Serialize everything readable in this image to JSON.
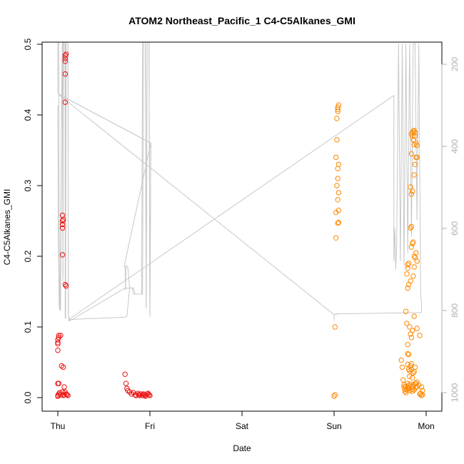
{
  "chart_data": {
    "type": "scatter",
    "title": "ATOM2 Northeast_Pacific_1 C4-C5Alkanes_GMI",
    "xlabel": "Date",
    "ylabel": "C4-C5Alkanes_GMI",
    "x_unit": "days",
    "xlim": [
      -0.2,
      4.15
    ],
    "ylim": [
      0,
      0.5
    ],
    "x_ticks": [
      0,
      1,
      2,
      3,
      4
    ],
    "x_tick_labels": [
      "Thu",
      "Fri",
      "Sat",
      "Sun",
      "Mon"
    ],
    "y_ticks": [
      0.0,
      0.1,
      0.2,
      0.3,
      0.4,
      0.5
    ],
    "y_tick_labels": [
      "0.0",
      "0.1",
      "0.2",
      "0.3",
      "0.4",
      "0.5"
    ],
    "y2_ticks": [
      200,
      400,
      600,
      800,
      1000
    ],
    "y2_tick_labels": [
      "200",
      "400",
      "600",
      "800",
      "1000"
    ],
    "y2lim": [
      1020,
      150
    ],
    "colors": {
      "series_red": "#ee1111",
      "series_orange": "#ff8800",
      "profile_line": "#c8c8c8"
    },
    "series": [
      {
        "color": "#ee1111",
        "points": [
          [
            0.0,
            0.003
          ],
          [
            0.01,
            0.005
          ],
          [
            0.02,
            0.007
          ],
          [
            0.03,
            0.004
          ],
          [
            0.0,
            0.002
          ],
          [
            0.01,
            0.088
          ],
          [
            0.01,
            0.085
          ],
          [
            0.0,
            0.082
          ],
          [
            0.0,
            0.078
          ],
          [
            0.0,
            0.076
          ],
          [
            0.0,
            0.067
          ],
          [
            0.0,
            0.02
          ],
          [
            0.01,
            0.02
          ],
          [
            0.03,
            0.088
          ],
          [
            0.04,
            0.045
          ],
          [
            0.06,
            0.043
          ],
          [
            0.05,
            0.008
          ],
          [
            0.06,
            0.003
          ],
          [
            0.07,
            0.015
          ],
          [
            0.08,
            0.008
          ],
          [
            0.09,
            0.005
          ],
          [
            0.1,
            0.004
          ],
          [
            0.11,
            0.003
          ],
          [
            0.07,
            0.004
          ],
          [
            0.05,
            0.202
          ],
          [
            0.05,
            0.24
          ],
          [
            0.05,
            0.245
          ],
          [
            0.05,
            0.25
          ],
          [
            0.06,
            0.252
          ],
          [
            0.05,
            0.258
          ],
          [
            0.08,
            0.16
          ],
          [
            0.09,
            0.158
          ],
          [
            0.08,
            0.418
          ],
          [
            0.08,
            0.458
          ],
          [
            0.08,
            0.476
          ],
          [
            0.08,
            0.48
          ],
          [
            0.08,
            0.484
          ],
          [
            0.09,
            0.486
          ],
          [
            0.73,
            0.033
          ],
          [
            0.74,
            0.02
          ],
          [
            0.75,
            0.013
          ],
          [
            0.76,
            0.01
          ],
          [
            0.78,
            0.008
          ],
          [
            0.8,
            0.005
          ],
          [
            0.82,
            0.007
          ],
          [
            0.84,
            0.004
          ],
          [
            0.85,
            0.003
          ],
          [
            0.87,
            0.006
          ],
          [
            0.88,
            0.004
          ],
          [
            0.9,
            0.005
          ],
          [
            0.92,
            0.003
          ],
          [
            0.94,
            0.004
          ],
          [
            0.95,
            0.002
          ],
          [
            0.97,
            0.005
          ],
          [
            0.98,
            0.006
          ],
          [
            0.99,
            0.004
          ],
          [
            1.0,
            0.003
          ],
          [
            0.96,
            0.003
          ],
          [
            0.93,
            0.005
          ],
          [
            0.89,
            0.003
          ]
        ]
      },
      {
        "color": "#ff8800",
        "points": [
          [
            3.0,
            0.002
          ],
          [
            3.01,
            0.004
          ],
          [
            3.01,
            0.1
          ],
          [
            3.02,
            0.226
          ],
          [
            3.02,
            0.262
          ],
          [
            3.03,
            0.3
          ],
          [
            3.04,
            0.324
          ],
          [
            3.02,
            0.34
          ],
          [
            3.05,
            0.33
          ],
          [
            3.04,
            0.31
          ],
          [
            3.05,
            0.29
          ],
          [
            3.04,
            0.28
          ],
          [
            3.05,
            0.265
          ],
          [
            3.05,
            0.248
          ],
          [
            3.04,
            0.247
          ],
          [
            3.03,
            0.365
          ],
          [
            3.03,
            0.395
          ],
          [
            3.04,
            0.405
          ],
          [
            3.04,
            0.408
          ],
          [
            3.04,
            0.411
          ],
          [
            3.05,
            0.414
          ],
          [
            3.73,
            0.053
          ],
          [
            3.74,
            0.043
          ],
          [
            3.75,
            0.025
          ],
          [
            3.76,
            0.018
          ],
          [
            3.76,
            0.015
          ],
          [
            3.77,
            0.012
          ],
          [
            3.77,
            0.009
          ],
          [
            3.78,
            0.016
          ],
          [
            3.78,
            0.007
          ],
          [
            3.79,
            0.011
          ],
          [
            3.8,
            0.014
          ],
          [
            3.8,
            0.02
          ],
          [
            3.81,
            0.017
          ],
          [
            3.81,
            0.013
          ],
          [
            3.82,
            0.01
          ],
          [
            3.83,
            0.019
          ],
          [
            3.84,
            0.016
          ],
          [
            3.85,
            0.012
          ],
          [
            3.85,
            0.009
          ],
          [
            3.86,
            0.018
          ],
          [
            3.86,
            0.015
          ],
          [
            3.87,
            0.011
          ],
          [
            3.88,
            0.02
          ],
          [
            3.89,
            0.014
          ],
          [
            3.9,
            0.016
          ],
          [
            3.78,
            0.122
          ],
          [
            3.79,
            0.105
          ],
          [
            3.8,
            0.075
          ],
          [
            3.8,
            0.062
          ],
          [
            3.81,
            0.061
          ],
          [
            3.8,
            0.047
          ],
          [
            3.81,
            0.04
          ],
          [
            3.82,
            0.038
          ],
          [
            3.82,
            0.03
          ],
          [
            3.83,
            0.045
          ],
          [
            3.84,
            0.048
          ],
          [
            3.84,
            0.04
          ],
          [
            3.85,
            0.028
          ],
          [
            3.86,
            0.035
          ],
          [
            3.87,
            0.037
          ],
          [
            3.88,
            0.043
          ],
          [
            3.89,
            0.02
          ],
          [
            3.9,
            0.022
          ],
          [
            3.82,
            0.1
          ],
          [
            3.83,
            0.09
          ],
          [
            3.84,
            0.085
          ],
          [
            3.85,
            0.095
          ],
          [
            3.87,
            0.115
          ],
          [
            3.9,
            0.098
          ],
          [
            3.93,
            0.088
          ],
          [
            3.8,
            0.155
          ],
          [
            3.81,
            0.16
          ],
          [
            3.83,
            0.165
          ],
          [
            3.79,
            0.175
          ],
          [
            3.8,
            0.183
          ],
          [
            3.8,
            0.188
          ],
          [
            3.81,
            0.19
          ],
          [
            3.84,
            0.213
          ],
          [
            3.85,
            0.218
          ],
          [
            3.86,
            0.22
          ],
          [
            3.87,
            0.2
          ],
          [
            3.88,
            0.198
          ],
          [
            3.89,
            0.205
          ],
          [
            3.9,
            0.193
          ],
          [
            3.86,
            0.172
          ],
          [
            3.87,
            0.185
          ],
          [
            3.83,
            0.24
          ],
          [
            3.84,
            0.242
          ],
          [
            3.83,
            0.298
          ],
          [
            3.84,
            0.288
          ],
          [
            3.85,
            0.292
          ],
          [
            3.87,
            0.315
          ],
          [
            3.88,
            0.33
          ],
          [
            3.89,
            0.34
          ],
          [
            3.9,
            0.34
          ],
          [
            3.84,
            0.345
          ],
          [
            3.86,
            0.365
          ],
          [
            3.87,
            0.358
          ],
          [
            3.88,
            0.37
          ],
          [
            3.88,
            0.375
          ],
          [
            3.89,
            0.36
          ],
          [
            3.9,
            0.357
          ],
          [
            3.85,
            0.37
          ],
          [
            3.84,
            0.373
          ],
          [
            3.85,
            0.375
          ],
          [
            3.86,
            0.377
          ],
          [
            3.87,
            0.378
          ],
          [
            3.93,
            0.005
          ],
          [
            3.94,
            0.006
          ],
          [
            3.95,
            0.003
          ],
          [
            3.96,
            0.004
          ],
          [
            3.95,
            0.015
          ],
          [
            3.92,
            0.018
          ],
          [
            3.96,
            0.01
          ]
        ]
      }
    ],
    "profile": {
      "color": "#c8c8c8",
      "axis": "right",
      "points": [
        [
          0.0,
          300
        ],
        [
          0.005,
          600
        ],
        [
          0.015,
          790
        ],
        [
          0.025,
          800
        ],
        [
          0.035,
          500
        ],
        [
          0.045,
          200
        ],
        [
          0.05,
          140
        ],
        [
          0.055,
          720
        ],
        [
          0.06,
          260
        ],
        [
          0.065,
          140
        ],
        [
          0.07,
          140
        ],
        [
          0.078,
          140
        ],
        [
          0.08,
          820
        ],
        [
          0.085,
          160
        ],
        [
          0.09,
          140
        ],
        [
          0.1,
          140
        ],
        [
          0.11,
          140
        ],
        [
          0.115,
          810
        ],
        [
          0.12,
          825
        ],
        [
          0.13,
          822
        ],
        [
          0.73,
          816
        ],
        [
          0.75,
          814
        ],
        [
          0.78,
          745
        ],
        [
          0.8,
          745
        ],
        [
          0.81,
          745
        ],
        [
          0.82,
          760
        ],
        [
          0.82,
          760
        ],
        [
          0.85,
          760
        ],
        [
          0.9,
          760
        ],
        [
          0.92,
          760
        ],
        [
          0.93,
          130
        ],
        [
          0.95,
          130
        ],
        [
          0.96,
          795
        ],
        [
          0.97,
          130
        ],
        [
          0.98,
          130
        ],
        [
          0.99,
          130
        ],
        [
          1.0,
          815
        ],
        [
          1.01,
          392
        ],
        [
          1.01,
          392
        ],
        [
          0.0,
          272
        ],
        [
          1.01,
          392
        ],
        [
          0.72,
          692
        ],
        [
          0.73,
          695
        ],
        [
          0.735,
          745
        ],
        [
          0.74,
          745
        ],
        [
          0.76,
          746
        ],
        [
          0.8,
          745
        ]
      ],
      "main_path": [
        [
          0.0,
          270
        ],
        [
          0.0,
          140
        ],
        [
          0.01,
          140
        ],
        [
          0.015,
          620
        ],
        [
          0.02,
          785
        ],
        [
          0.03,
          800
        ],
        [
          0.04,
          300
        ],
        [
          0.05,
          140
        ],
        [
          0.055,
          730
        ],
        [
          0.06,
          140
        ],
        [
          0.07,
          140
        ],
        [
          0.08,
          140
        ],
        [
          0.085,
          820
        ],
        [
          0.09,
          140
        ],
        [
          0.1,
          140
        ],
        [
          0.11,
          140
        ],
        [
          0.115,
          810
        ],
        [
          0.13,
          825
        ],
        [
          0.13,
          825
        ],
        [
          0.73,
          745
        ],
        [
          0.735,
          750
        ],
        [
          0.74,
          690
        ],
        [
          0.76,
          695
        ],
        [
          0.78,
          745
        ],
        [
          0.82,
          745
        ],
        [
          0.84,
          760
        ],
        [
          0.86,
          760
        ],
        [
          0.91,
          760
        ],
        [
          0.92,
          140
        ],
        [
          0.95,
          140
        ],
        [
          0.96,
          790
        ],
        [
          0.97,
          140
        ],
        [
          0.99,
          140
        ],
        [
          1.0,
          815
        ],
        [
          1.01,
          392
        ],
        [
          0.0,
          272
        ],
        [
          3.0,
          810
        ],
        [
          3.02,
          808
        ],
        [
          3.05,
          808
        ]
      ]
    }
  }
}
